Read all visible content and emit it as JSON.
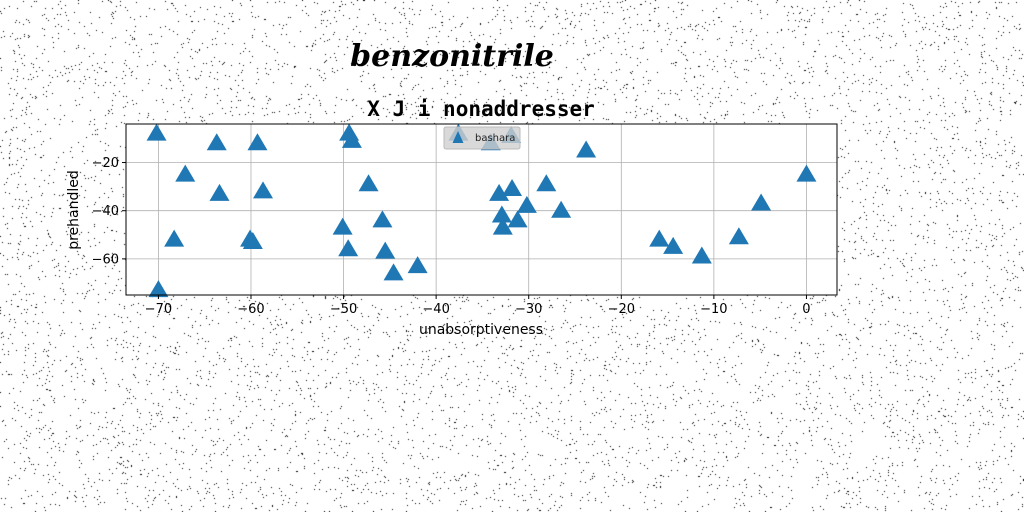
{
  "figure": {
    "suptitle": "benzonitrile"
  },
  "chart_data": {
    "type": "scatter",
    "title": "X J i nonaddresser",
    "xlabel": "unabsorptiveness",
    "ylabel": "prehandled",
    "xlim": [
      -73.5,
      3.3
    ],
    "ylim": [
      -75,
      -4
    ],
    "xticks": [
      -70,
      -60,
      -50,
      -40,
      -30,
      -20,
      -10,
      0
    ],
    "yticks": [
      -20,
      -40,
      -60
    ],
    "grid": true,
    "legend_position": "upper center",
    "marker": "triangle-up",
    "series": [
      {
        "name": "bashara",
        "color": "#1f77b4",
        "points": [
          {
            "x": -70.2,
            "y": -8
          },
          {
            "x": -70.0,
            "y": -73
          },
          {
            "x": -68.3,
            "y": -52
          },
          {
            "x": -67.1,
            "y": -25
          },
          {
            "x": -63.7,
            "y": -12
          },
          {
            "x": -63.4,
            "y": -33
          },
          {
            "x": -60.1,
            "y": -52
          },
          {
            "x": -59.8,
            "y": -53
          },
          {
            "x": -59.3,
            "y": -12
          },
          {
            "x": -58.7,
            "y": -32
          },
          {
            "x": -50.1,
            "y": -47
          },
          {
            "x": -49.5,
            "y": -56
          },
          {
            "x": -49.4,
            "y": -8
          },
          {
            "x": -49.1,
            "y": -11
          },
          {
            "x": -47.3,
            "y": -29
          },
          {
            "x": -45.8,
            "y": -44
          },
          {
            "x": -45.5,
            "y": -57
          },
          {
            "x": -44.6,
            "y": -66
          },
          {
            "x": -42.0,
            "y": -63
          },
          {
            "x": -37.6,
            "y": -8
          },
          {
            "x": -34.1,
            "y": -12
          },
          {
            "x": -33.2,
            "y": -33
          },
          {
            "x": -32.9,
            "y": -42
          },
          {
            "x": -32.8,
            "y": -47
          },
          {
            "x": -31.9,
            "y": -9
          },
          {
            "x": -31.8,
            "y": -31
          },
          {
            "x": -31.2,
            "y": -44
          },
          {
            "x": -30.2,
            "y": -38
          },
          {
            "x": -28.1,
            "y": -29
          },
          {
            "x": -26.5,
            "y": -40
          },
          {
            "x": -23.8,
            "y": -15
          },
          {
            "x": -15.9,
            "y": -52
          },
          {
            "x": -14.4,
            "y": -55
          },
          {
            "x": -11.3,
            "y": -59
          },
          {
            "x": -7.3,
            "y": -51
          },
          {
            "x": -4.9,
            "y": -37
          },
          {
            "x": 0.0,
            "y": -25
          }
        ]
      }
    ]
  }
}
